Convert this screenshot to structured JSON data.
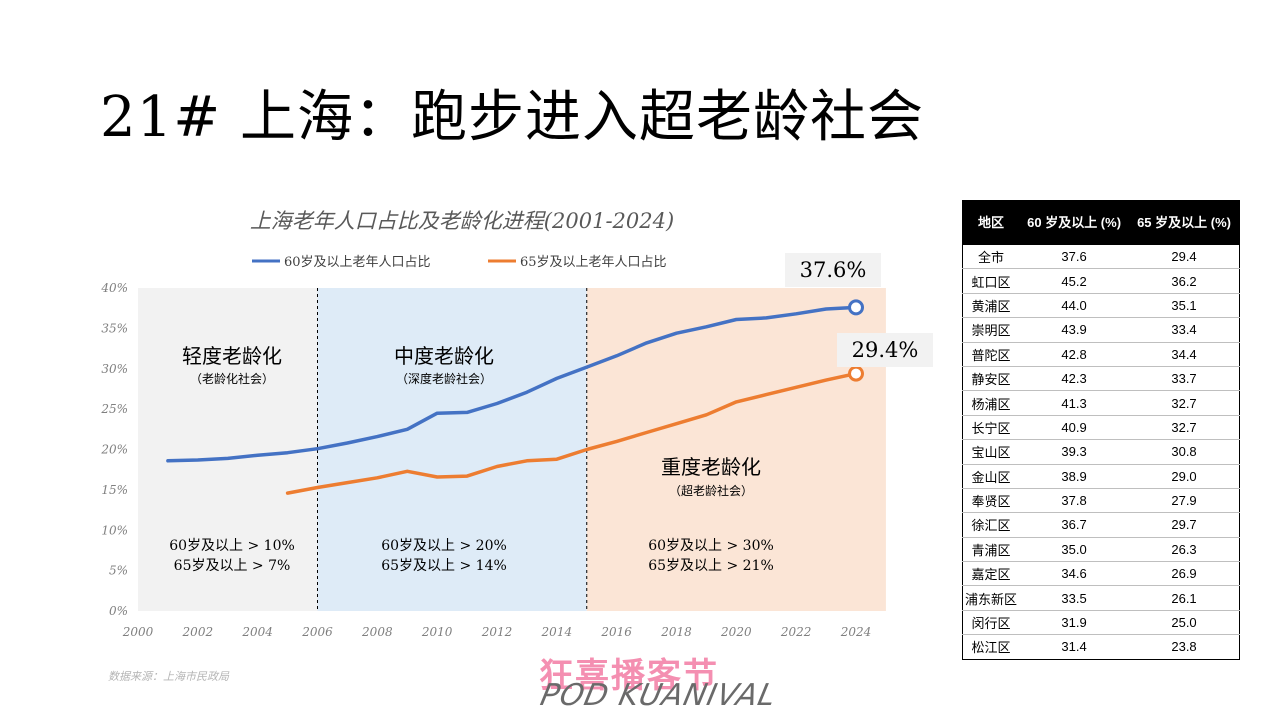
{
  "page_title": "21# 上海：跑步进入超老龄社会",
  "source": "数据来源：上海市民政局",
  "logo": {
    "cn": "狂喜播客节",
    "en": "POD KUANIVAL"
  },
  "chart_data": {
    "type": "line",
    "title": "上海老年人口占比及老龄化进程(2001-2024)",
    "xlim": [
      2000,
      2024
    ],
    "ylim": [
      0,
      40
    ],
    "x_ticks": [
      "2000",
      "2002",
      "2004",
      "2006",
      "2008",
      "2010",
      "2012",
      "2014",
      "2016",
      "2018",
      "2020",
      "2022",
      "2024"
    ],
    "y_ticks": [
      "0%",
      "5%",
      "10%",
      "15%",
      "20%",
      "25%",
      "30%",
      "35%",
      "40%"
    ],
    "legend_position": "top",
    "series": [
      {
        "name": "60岁及以上老年人口占比",
        "color": "#4472c4",
        "x": [
          2001,
          2002,
          2003,
          2004,
          2005,
          2006,
          2007,
          2008,
          2009,
          2010,
          2011,
          2012,
          2013,
          2014,
          2015,
          2016,
          2017,
          2018,
          2019,
          2020,
          2021,
          2022,
          2023,
          2024
        ],
        "y": [
          18.6,
          18.7,
          18.9,
          19.3,
          19.6,
          20.1,
          20.8,
          21.6,
          22.5,
          24.5,
          24.6,
          25.7,
          27.1,
          28.8,
          30.2,
          31.6,
          33.2,
          34.4,
          35.2,
          36.1,
          36.3,
          36.8,
          37.4,
          37.6
        ],
        "end_label": "37.6%"
      },
      {
        "name": "65岁及以上老年人口占比",
        "color": "#ed7d31",
        "x": [
          2005,
          2006,
          2007,
          2008,
          2009,
          2010,
          2011,
          2012,
          2013,
          2014,
          2015,
          2016,
          2017,
          2018,
          2019,
          2020,
          2021,
          2022,
          2023,
          2024
        ],
        "y": [
          14.6,
          15.3,
          15.9,
          16.5,
          17.3,
          16.6,
          16.7,
          17.9,
          18.6,
          18.8,
          20.0,
          21.0,
          22.1,
          23.2,
          24.3,
          25.9,
          26.8,
          27.7,
          28.6,
          29.4
        ],
        "end_label": "29.4%"
      }
    ],
    "stages": [
      {
        "from": 2000,
        "to": 2006,
        "color": "#f2f2f2",
        "name": "轻度老龄化",
        "sub": "（老龄化社会）",
        "crit1": "60岁及以上 > 10%",
        "crit2": "65岁及以上 > 7%"
      },
      {
        "from": 2006,
        "to": 2015,
        "color": "#deebf7",
        "name": "中度老龄化",
        "sub": "（深度老龄社会）",
        "crit1": "60岁及以上 > 20%",
        "crit2": "65岁及以上 > 14%"
      },
      {
        "from": 2015,
        "to": 2025,
        "color": "#fbe5d6",
        "name": "重度老龄化",
        "sub": "（超老龄社会）",
        "crit1": "60岁及以上 > 30%",
        "crit2": "65岁及以上 > 21%"
      }
    ]
  },
  "table": {
    "headers": [
      "地区",
      "60 岁及以上 (%)",
      "65 岁及以上 (%)"
    ],
    "rows": [
      [
        "全市",
        "37.6",
        "29.4"
      ],
      [
        "虹口区",
        "45.2",
        "36.2"
      ],
      [
        "黄浦区",
        "44.0",
        "35.1"
      ],
      [
        "崇明区",
        "43.9",
        "33.4"
      ],
      [
        "普陀区",
        "42.8",
        "34.4"
      ],
      [
        "静安区",
        "42.3",
        "33.7"
      ],
      [
        "杨浦区",
        "41.3",
        "32.7"
      ],
      [
        "长宁区",
        "40.9",
        "32.7"
      ],
      [
        "宝山区",
        "39.3",
        "30.8"
      ],
      [
        "金山区",
        "38.9",
        "29.0"
      ],
      [
        "奉贤区",
        "37.8",
        "27.9"
      ],
      [
        "徐汇区",
        "36.7",
        "29.7"
      ],
      [
        "青浦区",
        "35.0",
        "26.3"
      ],
      [
        "嘉定区",
        "34.6",
        "26.9"
      ],
      [
        "浦东新区",
        "33.5",
        "26.1"
      ],
      [
        "闵行区",
        "31.9",
        "25.0"
      ],
      [
        "松江区",
        "31.4",
        "23.8"
      ]
    ]
  }
}
